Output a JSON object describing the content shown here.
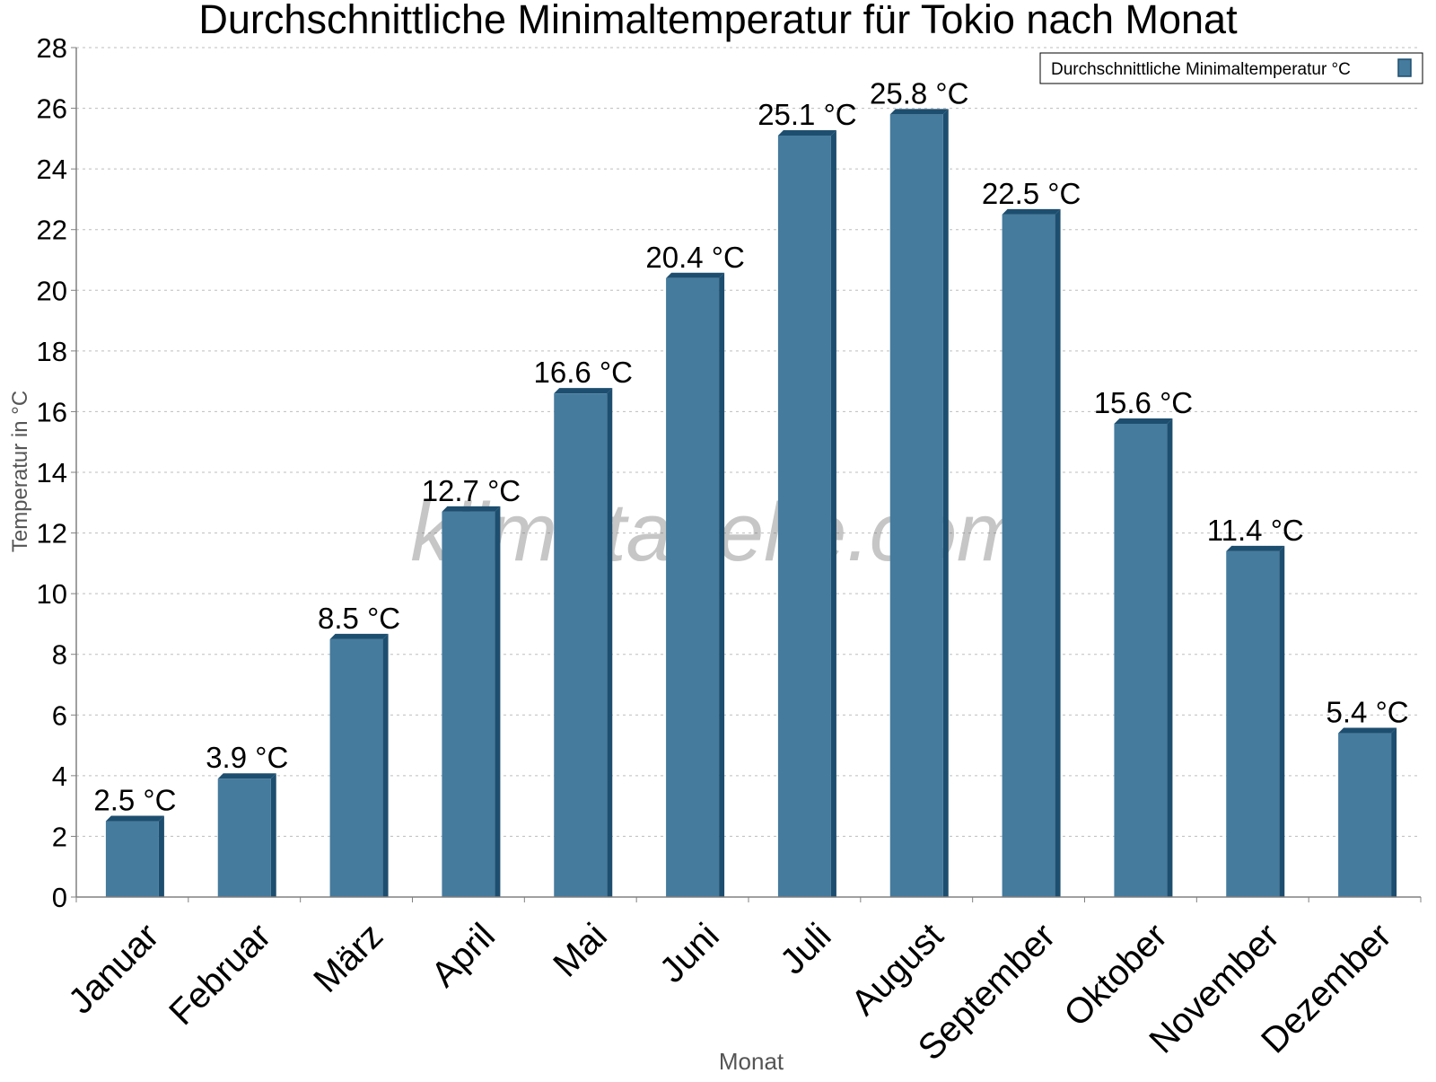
{
  "chart_data": {
    "type": "bar",
    "title": "Durchschnittliche Minimaltemperatur für Tokio nach Monat",
    "xlabel": "Monat",
    "ylabel": "Temperatur in °C",
    "categories": [
      "Januar",
      "Februar",
      "März",
      "April",
      "Mai",
      "Juni",
      "Juli",
      "August",
      "September",
      "Oktober",
      "November",
      "Dezember"
    ],
    "series": [
      {
        "name": "Durchschnittliche Minimaltemperatur °C",
        "values": [
          2.5,
          3.9,
          8.5,
          12.7,
          16.6,
          20.4,
          25.1,
          25.8,
          22.5,
          15.6,
          11.4,
          5.4
        ],
        "color": "#457b9d",
        "shade_color": "#1d4e6f"
      }
    ],
    "data_labels": [
      "2.5 °C",
      "3.9 °C",
      "8.5 °C",
      "12.7 °C",
      "16.6 °C",
      "20.4 °C",
      "25.1 °C",
      "25.8 °C",
      "22.5 °C",
      "15.6 °C",
      "11.4 °C",
      "5.4 °C"
    ],
    "yticks": [
      "0",
      "2",
      "4",
      "6",
      "8",
      "10",
      "12",
      "14",
      "16",
      "18",
      "20",
      "22",
      "24",
      "26",
      "28"
    ],
    "ylim": [
      0,
      28
    ],
    "grid": true,
    "legend_position": "top-right",
    "watermark": "klimatabelle.com"
  }
}
